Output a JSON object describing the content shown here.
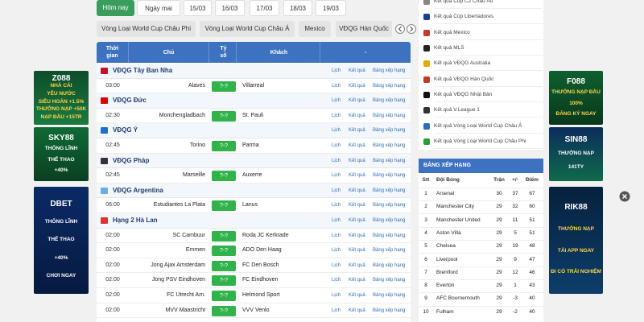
{
  "tabs": [
    "Hôm nay",
    "Ngày mai",
    "15/03",
    "16/03",
    "17/03",
    "18/03",
    "19/03"
  ],
  "filters": [
    "Vòng Loại World Cup Châu Phi",
    "Vòng Loại World Cup Châu Á",
    "Mexico",
    "VĐQG Hàn Quốc"
  ],
  "fixtures": {
    "columns": [
      "Thời gian",
      "Chủ",
      "Tỷ số",
      "Khách",
      "-"
    ],
    "leagues": [
      {
        "name": "VĐQG Tây Ban Nha",
        "links": [
          "Lịch",
          "Kết quả",
          "Bảng xếp hạng"
        ],
        "matches": [
          {
            "time": "03:00",
            "home": "Alaves",
            "score": "?-?",
            "away": "Villarreal",
            "links": [
              "Lịch",
              "Kết quả",
              "Bảng xếp hạng"
            ]
          }
        ]
      },
      {
        "name": "VĐQG Đức",
        "links": [
          "Lịch",
          "Kết quả",
          "Bảng xếp hạng"
        ],
        "matches": [
          {
            "time": "02:30",
            "home": "Monchengladbach",
            "score": "?-?",
            "away": "St. Pauli",
            "links": [
              "Lịch",
              "Kết quả",
              "Bảng xếp hạng"
            ]
          }
        ]
      },
      {
        "name": "VĐQG Ý",
        "links": [
          "Lịch",
          "Kết quả",
          "Bảng xếp hạng"
        ],
        "matches": [
          {
            "time": "02:45",
            "home": "Torino",
            "score": "?-?",
            "away": "Parma",
            "links": [
              "Lịch",
              "Kết quả",
              "Bảng xếp hạng"
            ]
          }
        ]
      },
      {
        "name": "VĐQG Pháp",
        "links": [
          "Lịch",
          "Kết quả",
          "Bảng xếp hạng"
        ],
        "matches": [
          {
            "time": "02:45",
            "home": "Marseille",
            "score": "?-?",
            "away": "Auxerre",
            "links": [
              "Lịch",
              "Kết quả",
              "Bảng xếp hạng"
            ]
          }
        ]
      },
      {
        "name": "VĐQG Argentina",
        "links": [
          "Lịch",
          "Kết quả",
          "Bảng xếp hạng"
        ],
        "matches": [
          {
            "time": "06:00",
            "home": "Estudiantes La Plata",
            "score": "?-?",
            "away": "Lanus",
            "links": [
              "Lịch",
              "Kết quả",
              "Bảng xếp hạng"
            ]
          }
        ]
      },
      {
        "name": "Hạng 2 Hà Lan",
        "links": [
          "Lịch",
          "Kết quả",
          "Bảng xếp hạng"
        ],
        "matches": [
          {
            "time": "02:00",
            "home": "SC Cambuur",
            "score": "?-?",
            "away": "Roda JC Kerkrade",
            "links": [
              "Lịch",
              "Kết quả",
              "Bảng xếp hạng"
            ]
          },
          {
            "time": "02:00",
            "home": "Emmen",
            "score": "?-?",
            "away": "ADO Den Haag",
            "links": [
              "Lịch",
              "Kết quả",
              "Bảng xếp hạng"
            ]
          },
          {
            "time": "02:00",
            "home": "Jong Ajax Amsterdam",
            "score": "?-?",
            "away": "FC Den Bosch",
            "links": [
              "Lịch",
              "Kết quả",
              "Bảng xếp hạng"
            ]
          },
          {
            "time": "02:00",
            "home": "Jong PSV Eindhoven",
            "score": "?-?",
            "away": "FC Eindhoven",
            "links": [
              "Lịch",
              "Kết quả",
              "Bảng xếp hạng"
            ]
          },
          {
            "time": "02:00",
            "home": "FC Utrecht Am.",
            "score": "?-?",
            "away": "Helmond Sport",
            "links": [
              "Lịch",
              "Kết quả",
              "Bảng xếp hạng"
            ]
          },
          {
            "time": "02:00",
            "home": "MVV Maastricht",
            "score": "?-?",
            "away": "VVV Venlo",
            "links": [
              "Lịch",
              "Kết quả",
              "Bảng xếp hạng"
            ]
          }
        ]
      }
    ]
  },
  "result_links": [
    "Kết quả Cúp C2 Châu Âu",
    "Kết quả Cúp Libertadores",
    "Kết quả Mexico",
    "Kết quả MLS",
    "Kết quả VĐQG Australia",
    "Kết quả VĐQG Hàn Quốc",
    "Kết quả VĐQG Nhật Bản",
    "Kết quả V.League 1",
    "Kết quả Vòng Loại World Cup Châu Á",
    "Kết quả Vòng Loại World Cup Châu Phi"
  ],
  "standings": {
    "title": "BẢNG XẾP HẠNG",
    "columns": [
      "Stt",
      "Đội Bóng",
      "Trận",
      "+/-",
      "Điểm"
    ],
    "rows": [
      [
        1,
        "Arsenal",
        30,
        37,
        67
      ],
      [
        2,
        "Manchester City",
        29,
        32,
        60
      ],
      [
        3,
        "Manchester United",
        29,
        11,
        51
      ],
      [
        4,
        "Aston Villa",
        29,
        5,
        51
      ],
      [
        5,
        "Chelsea",
        29,
        19,
        48
      ],
      [
        6,
        "Liverpool",
        29,
        9,
        47
      ],
      [
        7,
        "Brentford",
        29,
        12,
        46
      ],
      [
        8,
        "Everton",
        29,
        1,
        43
      ],
      [
        9,
        "AFC Bournemouth",
        29,
        -3,
        40
      ],
      [
        10,
        "Fulham",
        29,
        -2,
        40
      ]
    ]
  },
  "ads": {
    "left": [
      {
        "lines": [
          "Z088",
          "NHÀ CÁI",
          "YÊU NƯỚC",
          "SIÊU HOÀN +1.5%",
          "THƯỞNG NẠP +50K",
          "NẠP ĐẦU +15TR"
        ]
      },
      {
        "lines": [
          "SKY88",
          "THỐNG LĨNH",
          "THỂ THAO",
          "+40%"
        ]
      },
      {
        "lines": [
          "DBET",
          "THỐNG LĨNH",
          "THỂ THAO",
          "+40%",
          "CHƠI NGAY"
        ]
      }
    ],
    "right": [
      {
        "lines": [
          "F088",
          "THƯỞNG NẠP ĐẦU",
          "100%",
          "ĐĂNG KÝ NGAY"
        ]
      },
      {
        "lines": [
          "SIN88",
          "THƯỞNG NẠP",
          "141TY"
        ]
      },
      {
        "lines": [
          "RIK88",
          "THƯỞNG NẠP",
          "TẢI APP NGAY",
          "ĐI CÓ TRẢI NGHIỆM MƯỢT MẠCH"
        ]
      }
    ]
  }
}
